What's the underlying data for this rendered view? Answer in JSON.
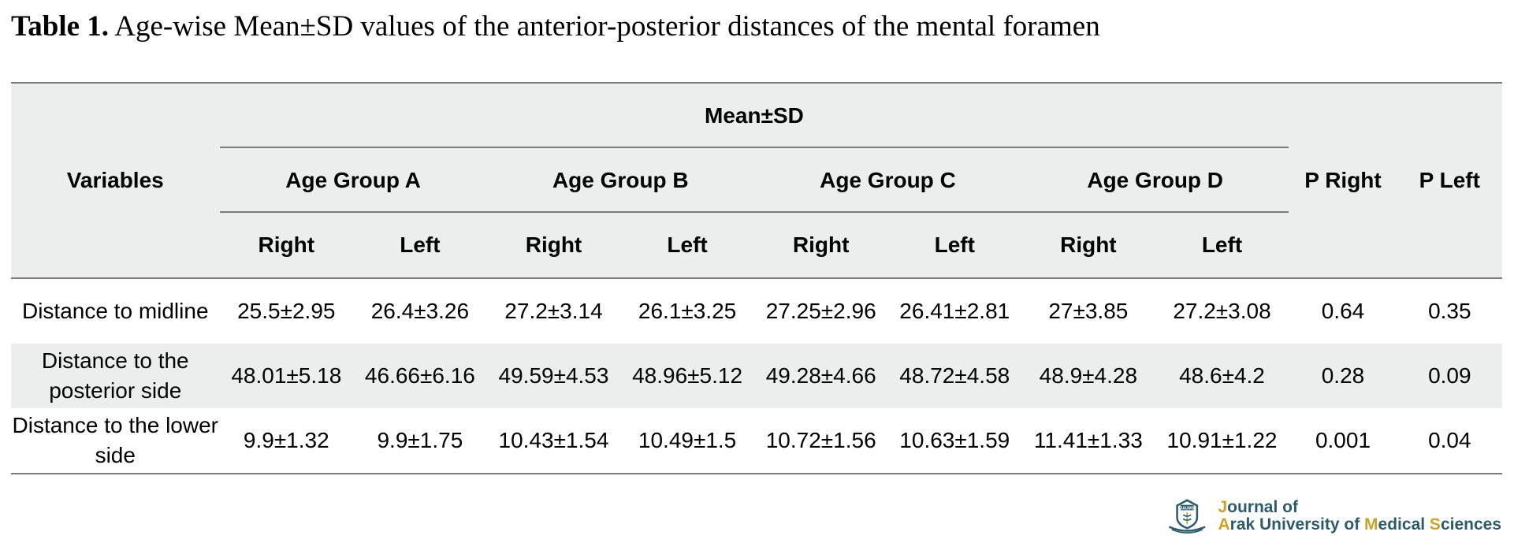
{
  "caption": {
    "label": "Table 1.",
    "text": "Age-wise Mean±SD values of the anterior-posterior distances of the mental foramen"
  },
  "table": {
    "variables_header": "Variables",
    "group_header": "Mean±SD",
    "age_groups": [
      "Age Group A",
      "Age Group B",
      "Age Group C",
      "Age Group D"
    ],
    "side_labels": [
      "Right",
      "Left"
    ],
    "p_right_header": "P Right",
    "p_left_header": "P Left",
    "rows": [
      {
        "variable": "Distance to midline",
        "values": [
          "25.5±2.95",
          "26.4±3.26",
          "27.2±3.14",
          "26.1±3.25",
          "27.25±2.96",
          "26.41±2.81",
          "27±3.85",
          "27.2±3.08"
        ],
        "p_right": "0.64",
        "p_left": "0.35"
      },
      {
        "variable": "Distance to the posterior side",
        "values": [
          "48.01±5.18",
          "46.66±6.16",
          "49.59±4.53",
          "48.96±5.12",
          "49.28±4.66",
          "48.72±4.58",
          "48.9±4.28",
          "48.6±4.2"
        ],
        "p_right": "0.28",
        "p_left": "0.09"
      },
      {
        "variable": "Distance to the lower side",
        "values": [
          "9.9±1.32",
          "9.9±1.75",
          "10.43±1.54",
          "10.49±1.5",
          "10.72±1.56",
          "10.63±1.59",
          "11.41±1.33",
          "10.91±1.22"
        ],
        "p_right": "0.001",
        "p_left": "0.04"
      }
    ]
  },
  "logo": {
    "mark_text": "JAUMS",
    "line1": {
      "j": "J",
      "rest": "ournal of"
    },
    "line2": {
      "a": "A",
      "p1": "rak University of ",
      "m": "M",
      "p2": "edical ",
      "s": "S",
      "p3": "ciences"
    },
    "colors": {
      "primary": "#2d5b6b",
      "accent": "#c9a227"
    }
  }
}
